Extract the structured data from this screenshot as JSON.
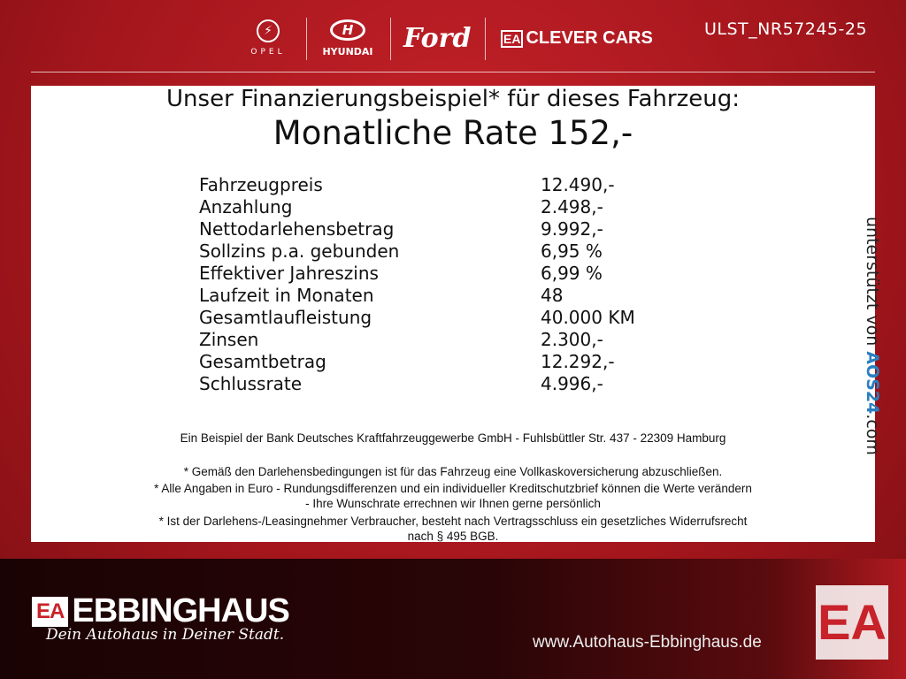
{
  "header": {
    "brands": [
      "OPEL",
      "HYUNDAI",
      "Ford",
      "CLEVER CARS"
    ],
    "clever_prefix": "EA",
    "reference": "ULST_NR57245-25"
  },
  "offer": {
    "title": "Unser Finanzierungsbeispiel* für dieses Fahrzeug:",
    "rate": "Monatliche Rate 152,-",
    "rows": [
      {
        "label": "Fahrzeugpreis",
        "value": "12.490,-"
      },
      {
        "label": "Anzahlung",
        "value": "2.498,-"
      },
      {
        "label": "Nettodarlehensbetrag",
        "value": "9.992,-"
      },
      {
        "label": "Sollzins p.a. gebunden",
        "value": "6,95 %"
      },
      {
        "label": "Effektiver Jahreszins",
        "value": "6,99 %"
      },
      {
        "label": "Laufzeit in Monaten",
        "value": "48"
      },
      {
        "label": "Gesamtlaufleistung",
        "value": "40.000 KM"
      },
      {
        "label": "Zinsen",
        "value": "2.300,-"
      },
      {
        "label": "Gesamtbetrag",
        "value": "12.292,-"
      },
      {
        "label": "Schlussrate",
        "value": "4.996,-"
      }
    ],
    "bank": "Ein Beispiel der Bank Deutsches Kraftfahrzeuggewerbe GmbH - Fuhlsbüttler Str. 437 - 22309 Hamburg",
    "notes": [
      "* Gemäß den Darlehensbedingungen ist für das Fahrzeug eine Vollkaskoversicherung abzuschließen.",
      "* Alle Angaben in Euro - Rundungsdifferenzen und ein individueller Kreditschutzbrief können die Werte verändern",
      "- Ihre Wunschrate errechnen wir Ihnen gerne persönlich",
      "* Ist der Darlehens-/Leasingnehmer Verbraucher, besteht nach Vertragsschluss ein gesetzliches Widerrufsrecht",
      "nach § 495 BGB."
    ],
    "supported_prefix": "unterstützt von ",
    "supported_brand": "AOS24",
    "supported_suffix": ".com"
  },
  "footer": {
    "logo_prefix": "EA",
    "logo": "EBBINGHAUS",
    "slogan": "Dein Autohaus in Deiner Stadt.",
    "url": "www.Autohaus-Ebbinghaus.de",
    "emblem": "EA"
  },
  "colors": {
    "brand_red": "#c8222a",
    "dark": "#1a0304"
  }
}
